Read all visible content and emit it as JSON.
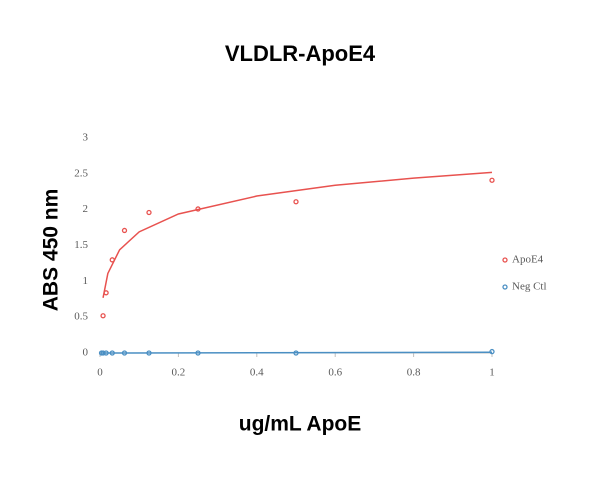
{
  "chart_data": {
    "type": "scatter",
    "title": "VLDLR-ApoE4",
    "x_label": "ug/mL ApoE",
    "y_label": "ABS 450 nm",
    "xlim": [
      0,
      1
    ],
    "xticks": [
      0,
      0.2,
      0.4,
      0.6,
      0.8,
      1
    ],
    "ylim": [
      0,
      3
    ],
    "yticks": [
      0,
      0.5,
      1,
      1.5,
      2,
      2.5,
      3
    ],
    "grid": false,
    "legend": "right",
    "series": [
      {
        "name": "ApoE4",
        "color": "#e8524f",
        "x": [
          0.0078,
          0.0156,
          0.03125,
          0.0625,
          0.125,
          0.25,
          0.5,
          1
        ],
        "values": [
          0.52,
          0.84,
          1.3,
          1.71,
          1.96,
          2.01,
          2.11,
          2.41
        ],
        "trendline": {
          "x": [
            0.0078,
            0.02,
            0.05,
            0.1,
            0.2,
            0.4,
            0.6,
            0.8,
            1
          ],
          "values": [
            0.77,
            1.11,
            1.44,
            1.69,
            1.94,
            2.19,
            2.34,
            2.44,
            2.52
          ]
        }
      },
      {
        "name": "Neg Ctl",
        "color": "#4a8fc3",
        "x": [
          0.0039,
          0.0078,
          0.0156,
          0.03125,
          0.0625,
          0.125,
          0.25,
          0.5,
          1
        ],
        "values": [
          0,
          0,
          0,
          0,
          0,
          0,
          0,
          0,
          0.02
        ],
        "trendline": {
          "x": [
            0.0039,
            1
          ],
          "values": [
            0,
            0.01
          ]
        }
      }
    ]
  }
}
